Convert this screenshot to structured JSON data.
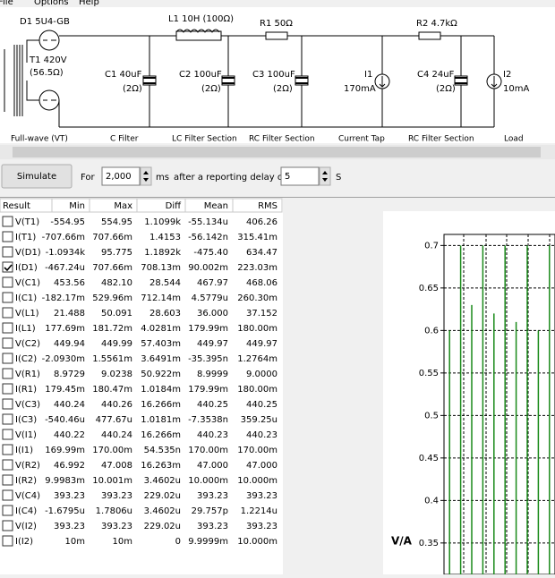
{
  "menu": [
    "File",
    "Options",
    "Help"
  ],
  "circuit": {
    "labels": [
      "D1 5U4-GB",
      "T1 420V",
      "(56.5Ω)",
      "L1 10H (100Ω)",
      "R1 50Ω",
      "R2 4.7kΩ",
      "C1 40uF",
      "(2Ω)",
      "C2 100uF",
      "(2Ω)",
      "C3 100uF",
      "(2Ω)",
      "I1",
      "170mA",
      "C4 24uF",
      "(2Ω)",
      "I2",
      "10mA"
    ],
    "sections": [
      "Full-wave (VT)",
      "C Filter",
      "LC Filter Section",
      "RC Filter Section",
      "Current Tap",
      "RC Filter Section",
      "Load"
    ]
  },
  "controls": {
    "button": "Simulate",
    "for": "For",
    "duration": "2,000",
    "duration_unit": "ms",
    "delay_text": "after a reporting delay of",
    "delay": "5",
    "delay_unit": "S"
  },
  "table": {
    "columns": [
      "Result",
      "Min",
      "Max",
      "Diff",
      "Mean",
      "RMS"
    ],
    "rows": [
      {
        "checked": false,
        "cells": [
          "V(T1)",
          "-554.95",
          "554.95",
          "1.1099k",
          "-55.134u",
          "406.26"
        ]
      },
      {
        "checked": false,
        "cells": [
          "I(T1)",
          "-707.66m",
          "707.66m",
          "1.4153",
          "-56.142n",
          "315.41m"
        ]
      },
      {
        "checked": false,
        "cells": [
          "V(D1)",
          "-1.0934k",
          "95.775",
          "1.1892k",
          "-475.40",
          "634.47"
        ]
      },
      {
        "checked": true,
        "cells": [
          "I(D1)",
          "-467.24u",
          "707.66m",
          "708.13m",
          "90.002m",
          "223.03m"
        ]
      },
      {
        "checked": false,
        "cells": [
          "V(C1)",
          "453.56",
          "482.10",
          "28.544",
          "467.97",
          "468.06"
        ]
      },
      {
        "checked": false,
        "cells": [
          "I(C1)",
          "-182.17m",
          "529.96m",
          "712.14m",
          "4.5779u",
          "260.30m"
        ]
      },
      {
        "checked": false,
        "cells": [
          "V(L1)",
          "21.488",
          "50.091",
          "28.603",
          "36.000",
          "37.152"
        ]
      },
      {
        "checked": false,
        "cells": [
          "I(L1)",
          "177.69m",
          "181.72m",
          "4.0281m",
          "179.99m",
          "180.00m"
        ]
      },
      {
        "checked": false,
        "cells": [
          "V(C2)",
          "449.94",
          "449.99",
          "57.403m",
          "449.97",
          "449.97"
        ]
      },
      {
        "checked": false,
        "cells": [
          "I(C2)",
          "-2.0930m",
          "1.5561m",
          "3.6491m",
          "-35.395n",
          "1.2764m"
        ]
      },
      {
        "checked": false,
        "cells": [
          "V(R1)",
          "8.9729",
          "9.0238",
          "50.922m",
          "8.9999",
          "9.0000"
        ]
      },
      {
        "checked": false,
        "cells": [
          "I(R1)",
          "179.45m",
          "180.47m",
          "1.0184m",
          "179.99m",
          "180.00m"
        ]
      },
      {
        "checked": false,
        "cells": [
          "V(C3)",
          "440.24",
          "440.26",
          "16.266m",
          "440.25",
          "440.25"
        ]
      },
      {
        "checked": false,
        "cells": [
          "I(C3)",
          "-540.46u",
          "477.67u",
          "1.0181m",
          "-7.3538n",
          "359.25u"
        ]
      },
      {
        "checked": false,
        "cells": [
          "V(I1)",
          "440.22",
          "440.24",
          "16.266m",
          "440.23",
          "440.23"
        ]
      },
      {
        "checked": false,
        "cells": [
          "I(I1)",
          "169.99m",
          "170.00m",
          "54.535n",
          "170.00m",
          "170.00m"
        ]
      },
      {
        "checked": false,
        "cells": [
          "V(R2)",
          "46.992",
          "47.008",
          "16.263m",
          "47.000",
          "47.000"
        ]
      },
      {
        "checked": false,
        "cells": [
          "I(R2)",
          "9.9983m",
          "10.001m",
          "3.4602u",
          "10.000m",
          "10.000m"
        ]
      },
      {
        "checked": false,
        "cells": [
          "V(C4)",
          "393.23",
          "393.23",
          "229.02u",
          "393.23",
          "393.23"
        ]
      },
      {
        "checked": false,
        "cells": [
          "I(C4)",
          "-1.6795u",
          "1.7806u",
          "3.4602u",
          "29.757p",
          "1.2214u"
        ]
      },
      {
        "checked": false,
        "cells": [
          "V(I2)",
          "393.23",
          "393.23",
          "229.02u",
          "393.23",
          "393.23"
        ]
      },
      {
        "checked": false,
        "cells": [
          "I(I2)",
          "10m",
          "10m",
          "0",
          "9.9999m",
          "10.000m"
        ]
      }
    ]
  },
  "chart_data": {
    "type": "spike",
    "ylabel": "V/A",
    "categories": [
      null,
      null,
      null,
      null,
      null,
      null,
      null,
      null,
      null,
      null
    ],
    "series": [
      {
        "color": "#1a8a1a",
        "values": [
          0.6,
          0.7,
          0.63,
          0.7,
          0.62,
          0.7,
          0.61,
          0.7,
          0.6,
          0.7
        ]
      }
    ],
    "ylim": [
      0.313,
      0.713
    ],
    "yticks": [
      0.35,
      0.4,
      0.45,
      0.5,
      0.55,
      0.6,
      0.65,
      0.7
    ],
    "grid": true
  }
}
